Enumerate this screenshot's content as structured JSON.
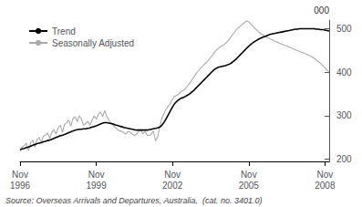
{
  "chart_data": {
    "type": "line",
    "ylabel": "000",
    "annotations": [
      "Source: Overseas Arrivals and Departures, Australia,  (cat. no. 3401.0)"
    ],
    "legend": "upper left",
    "grid": false,
    "ylim": [
      195,
      520
    ],
    "yticks": [
      200,
      300,
      400,
      500
    ],
    "categories": [
      "Nov\n1996",
      null,
      null,
      null,
      null,
      null,
      null,
      null,
      null,
      null,
      null,
      null,
      null,
      null,
      null,
      null,
      null,
      null,
      null,
      null,
      null,
      null,
      null,
      null,
      null,
      null,
      null,
      null,
      null,
      null,
      null,
      null,
      null,
      null,
      null,
      null,
      "Nov\n1999",
      null,
      null,
      null,
      null,
      null,
      null,
      null,
      null,
      null,
      null,
      null,
      null,
      null,
      null,
      null,
      null,
      null,
      null,
      null,
      null,
      null,
      null,
      null,
      null,
      null,
      null,
      null,
      null,
      null,
      null,
      null,
      null,
      null,
      null,
      null,
      "Nov\n2002",
      null,
      null,
      null,
      null,
      null,
      null,
      null,
      null,
      null,
      null,
      null,
      null,
      null,
      null,
      null,
      null,
      null,
      null,
      null,
      null,
      null,
      null,
      null,
      null,
      null,
      null,
      null,
      null,
      null,
      null,
      null,
      null,
      null,
      null,
      null,
      "Nov\n2005",
      null,
      null,
      null,
      null,
      null,
      null,
      null,
      null,
      null,
      null,
      null,
      null,
      null,
      null,
      null,
      null,
      null,
      null,
      null,
      null,
      null,
      null,
      null,
      null,
      null,
      null,
      null,
      null,
      null,
      null,
      null,
      null,
      null,
      null,
      null,
      "Nov\n2008",
      null,
      null
    ],
    "series": [
      {
        "name": "Trend",
        "color": "#000000",
        "values": [
          222,
          224,
          225,
          227,
          228,
          230,
          232,
          234,
          236,
          237,
          238,
          240,
          241,
          243,
          244,
          246,
          248,
          250,
          252,
          254,
          255,
          257,
          259,
          261,
          263,
          265,
          267,
          268,
          269,
          269,
          270,
          270,
          271,
          272,
          274,
          275,
          277,
          279,
          281,
          283,
          284,
          284,
          283,
          282,
          281,
          279,
          278,
          276,
          275,
          273,
          272,
          271,
          270,
          269,
          268,
          267,
          267,
          267,
          267,
          267,
          267,
          268,
          269,
          270,
          271,
          272,
          274,
          278,
          285,
          293,
          302,
          311,
          320,
          328,
          333,
          337,
          340,
          342,
          344,
          347,
          350,
          354,
          358,
          363,
          368,
          373,
          378,
          383,
          388,
          393,
          398,
          403,
          407,
          410,
          412,
          413,
          414,
          415,
          417,
          419,
          422,
          426,
          430,
          435,
          440,
          445,
          450,
          455,
          460,
          464,
          468,
          471,
          474,
          477,
          479,
          481,
          483,
          485,
          487,
          488,
          489,
          490,
          491,
          492,
          493,
          494,
          495,
          496,
          497,
          498,
          499,
          499,
          500,
          500,
          500,
          500,
          500,
          500,
          500,
          500,
          499,
          499,
          498,
          498,
          497,
          496,
          495
        ]
      },
      {
        "name": "Seasonally Adjusted",
        "color": "#aaaaaa",
        "values": [
          218,
          228,
          232,
          237,
          220,
          238,
          244,
          228,
          245,
          250,
          238,
          253,
          256,
          260,
          248,
          262,
          268,
          258,
          272,
          278,
          262,
          280,
          284,
          290,
          276,
          294,
          298,
          286,
          300,
          292,
          278,
          282,
          287,
          278,
          290,
          300,
          292,
          303,
          309,
          298,
          312,
          298,
          290,
          283,
          278,
          273,
          268,
          265,
          264,
          261,
          258,
          264,
          262,
          258,
          254,
          258,
          264,
          268,
          258,
          264,
          256,
          254,
          258,
          265,
          242,
          252,
          274,
          295,
          305,
          315,
          322,
          328,
          338,
          345,
          347,
          350,
          356,
          358,
          362,
          368,
          374,
          381,
          388,
          396,
          402,
          408,
          413,
          418,
          422,
          428,
          434,
          440,
          447,
          452,
          456,
          460,
          462,
          466,
          471,
          477,
          484,
          490,
          497,
          502,
          506,
          510,
          514,
          518,
          516,
          511,
          506,
          500,
          496,
          491,
          488,
          485,
          482,
          479,
          477,
          475,
          472,
          470,
          468,
          466,
          464,
          462,
          460,
          458,
          456,
          454,
          452,
          450,
          448,
          446,
          444,
          442,
          440,
          438,
          435,
          432,
          428,
          424,
          420,
          415,
          410,
          405,
          400
        ]
      }
    ]
  }
}
